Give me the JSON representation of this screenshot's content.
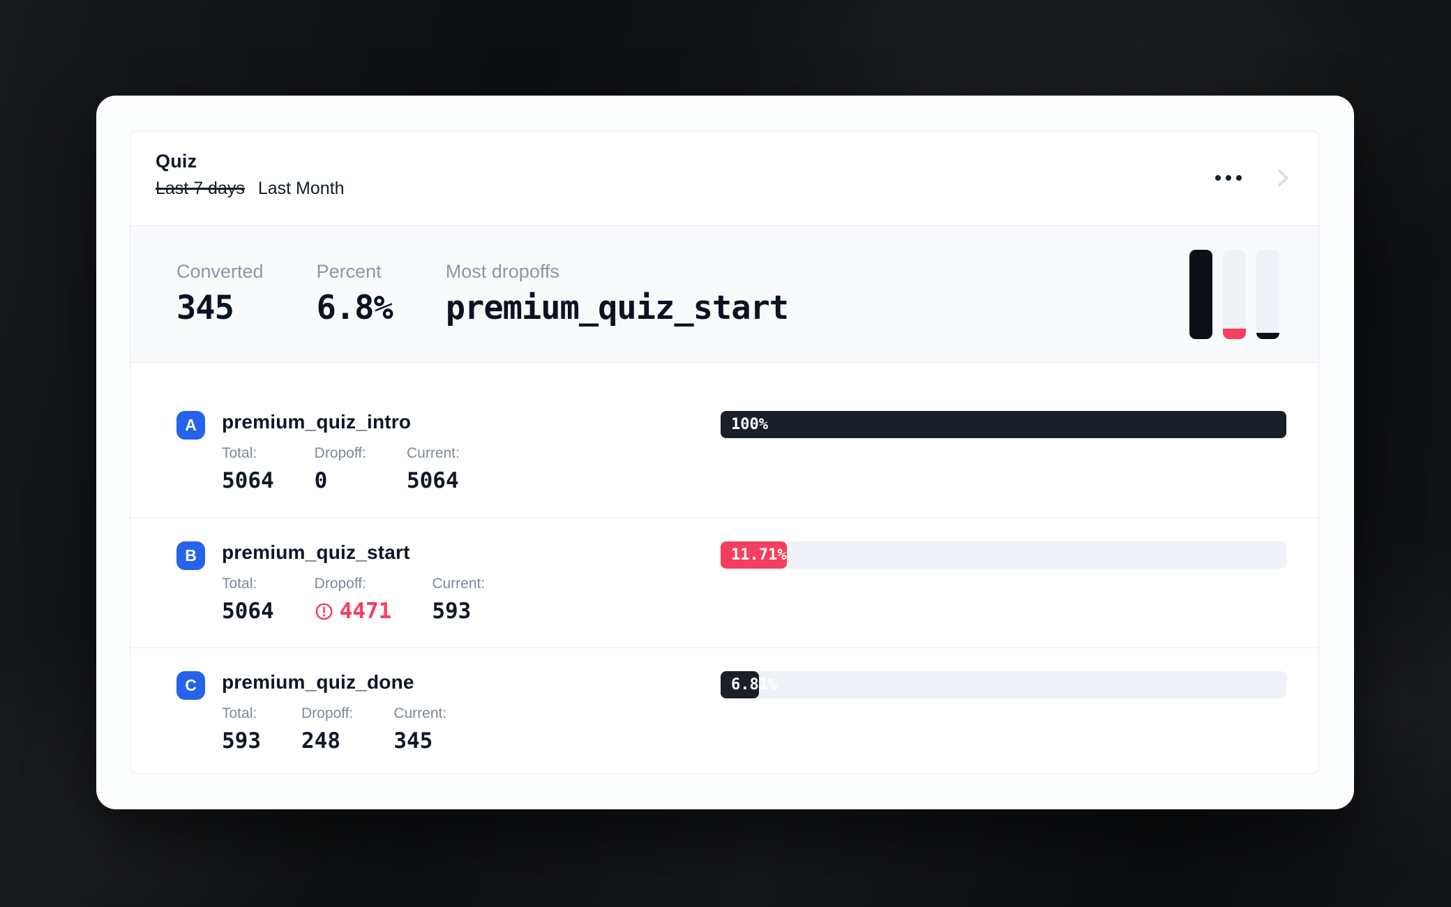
{
  "card": {
    "title": "Quiz",
    "time_ranges": [
      {
        "label": "Last 7 days",
        "strikethrough": true
      },
      {
        "label": "Last Month",
        "strikethrough": false
      }
    ]
  },
  "summary": {
    "stats": [
      {
        "label": "Converted",
        "value": "345"
      },
      {
        "label": "Percent",
        "value": "6.8%"
      },
      {
        "label": "Most dropoffs",
        "value": "premium_quiz_start"
      }
    ],
    "minichart": {
      "bars": [
        {
          "fill_percent": 100,
          "color": "dark"
        },
        {
          "fill_percent": 11.71,
          "color": "red"
        },
        {
          "fill_percent": 6.81,
          "color": "dark"
        }
      ]
    }
  },
  "labels": {
    "total": "Total:",
    "dropoff": "Dropoff:",
    "current": "Current:"
  },
  "funnel_steps": [
    {
      "badge": "A",
      "name": "premium_quiz_intro",
      "total": "5064",
      "dropoff": "0",
      "dropoff_alert": false,
      "current": "5064",
      "percent_label": "100%",
      "percent_value": 100,
      "bar_color": "dark"
    },
    {
      "badge": "B",
      "name": "premium_quiz_start",
      "total": "5064",
      "dropoff": "4471",
      "dropoff_alert": true,
      "current": "593",
      "percent_label": "11.71%",
      "percent_value": 11.71,
      "bar_color": "red"
    },
    {
      "badge": "C",
      "name": "premium_quiz_done",
      "total": "593",
      "dropoff": "248",
      "dropoff_alert": false,
      "current": "345",
      "percent_label": "6.81%",
      "percent_value": 6.81,
      "bar_color": "dark"
    }
  ],
  "colors": {
    "accent_blue": "#2563eb",
    "danger_red": "#f43f5e",
    "bar_dark": "#1a1f28",
    "track_gray": "#eef1f6",
    "stats_band_bg": "#f8fafc"
  }
}
